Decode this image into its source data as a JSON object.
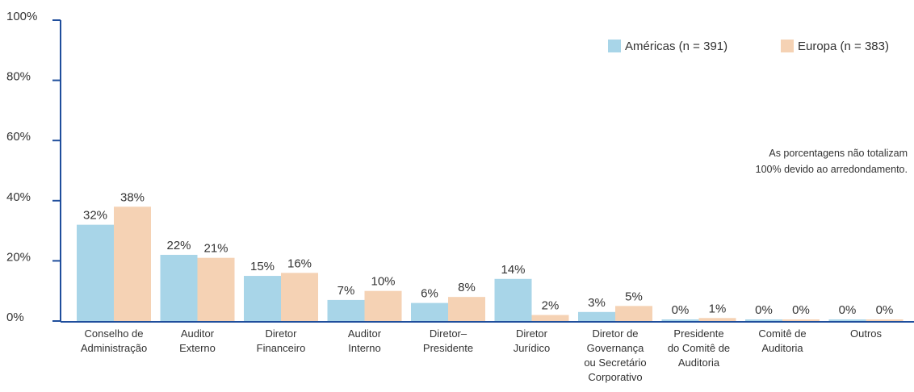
{
  "chart_data": {
    "type": "bar",
    "categories": [
      [
        "Conselho de",
        "Administração"
      ],
      [
        "Auditor",
        "Externo"
      ],
      [
        "Diretor",
        "Financeiro"
      ],
      [
        "Auditor",
        "Interno"
      ],
      [
        "Diretor–",
        "Presidente"
      ],
      [
        "Diretor",
        "Jurídico"
      ],
      [
        "Diretor de",
        "Governança",
        "ou Secretário",
        "Corporativo"
      ],
      [
        "Presidente",
        "do Comitê de",
        "Auditoria"
      ],
      [
        "Comitê de",
        "Auditoria"
      ],
      [
        "Outros"
      ]
    ],
    "series": [
      {
        "name": "Américas (n = 391)",
        "color": "#a8d5e8",
        "values": [
          32,
          22,
          15,
          7,
          6,
          14,
          3,
          0,
          0,
          0
        ],
        "labels": [
          "32%",
          "22%",
          "15%",
          "7%",
          "6%",
          "14%",
          "3%",
          "0%",
          "0%",
          "0%"
        ]
      },
      {
        "name": "Europa (n = 383)",
        "color": "#f5d2b4",
        "values": [
          38,
          21,
          16,
          10,
          8,
          2,
          5,
          1,
          0,
          0
        ],
        "labels": [
          "38%",
          "21%",
          "16%",
          "10%",
          "8%",
          "2%",
          "5%",
          "1%",
          "0%",
          "0%"
        ]
      }
    ],
    "yticks": [
      "0%",
      "20%",
      "40%",
      "60%",
      "80%",
      "100%"
    ],
    "ylim": [
      0,
      100
    ],
    "xlabel": "",
    "ylabel": "",
    "grid": false,
    "legend_position": "top-right",
    "axis_color": "#1f4e9c"
  },
  "note": {
    "line1": "As porcentagens não totalizam",
    "line2": "100% devido ao arredondamento."
  }
}
